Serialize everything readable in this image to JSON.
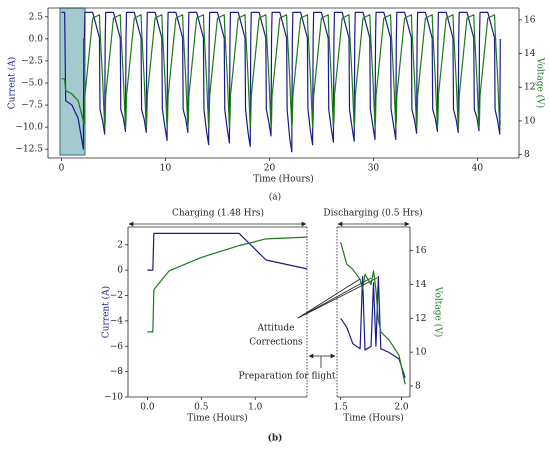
{
  "chart_data": [
    {
      "type": "line",
      "xlabel": "Time (Hours)",
      "ylabel": "Current (A)",
      "y2label": "Voltage (V)",
      "caption": "(a)",
      "xlim": [
        -1.3,
        44
      ],
      "xticks": [
        0,
        10,
        20,
        30,
        40
      ],
      "ylim": [
        -13.5,
        3.5
      ],
      "yticks": [
        2.5,
        {
          "value": 0,
          "label": "0.0"
        },
        {
          "value": -2.5,
          "label": "−2.5"
        },
        {
          "value": -5,
          "label": "−5.0"
        },
        {
          "value": -7.5,
          "label": "−7.5"
        },
        {
          "value": -10,
          "label": "−10.0"
        },
        {
          "value": -12.5,
          "label": "−12.5"
        }
      ],
      "y2lim": [
        7.8,
        16.7
      ],
      "y2ticks": [
        8,
        10,
        12,
        14,
        16
      ],
      "x": [
        0,
        0.3,
        0.4,
        1,
        1.6,
        2.1,
        2.15,
        2.2,
        2.25,
        3,
        3.65,
        3.7,
        3.95,
        4.15,
        4.2,
        4.25,
        5,
        5.65,
        5.7,
        5.95,
        6.15,
        6.2,
        6.25,
        7,
        7.65,
        7.7,
        7.95,
        8.15,
        8.2,
        8.25,
        9,
        9.65,
        9.7,
        9.95,
        10.15,
        10.2,
        10.25,
        11,
        11.65,
        11.7,
        11.95,
        12.15,
        12.2,
        12.25,
        13,
        13.65,
        13.7,
        13.95,
        14.15,
        14.2,
        14.25,
        15,
        15.65,
        15.7,
        15.95,
        16.15,
        16.2,
        16.25,
        17,
        17.65,
        17.7,
        17.95,
        18.15,
        18.2,
        18.25,
        19,
        19.65,
        19.7,
        19.95,
        20.15,
        20.2,
        20.25,
        21,
        21.65,
        21.7,
        21.95,
        22.15,
        22.2,
        22.25,
        23,
        23.65,
        23.7,
        23.95,
        24.15,
        24.2,
        24.25,
        25,
        25.65,
        25.7,
        25.95,
        26.15,
        26.2,
        26.25,
        27,
        27.65,
        27.7,
        27.95,
        28.15,
        28.2,
        28.25,
        29,
        29.65,
        29.7,
        29.95,
        30.15,
        30.2,
        30.25,
        31,
        31.65,
        31.7,
        31.95,
        32.15,
        32.2,
        32.25,
        33,
        33.65,
        33.7,
        33.95,
        34.15,
        34.2,
        34.25,
        35,
        35.65,
        35.7,
        35.95,
        36.15,
        36.2,
        36.25,
        37,
        37.65,
        37.7,
        37.95,
        38.15,
        38.2,
        38.25,
        39,
        39.65,
        39.7,
        39.95,
        40.15,
        40.2,
        40.25,
        41,
        41.65,
        41.7,
        41.95,
        42.15,
        42.2
      ],
      "series": [
        {
          "color": "#1a1a8c",
          "axis": "y",
          "values": [
            3,
            3,
            -7,
            -7.5,
            -9,
            -12.5,
            0,
            0,
            3,
            3,
            0.1,
            -8,
            -9.3,
            -10.8,
            0,
            3,
            3,
            0.1,
            -8,
            -9,
            -10.5,
            0,
            3,
            3,
            0.1,
            -8,
            -9.1,
            -10.6,
            0,
            3,
            3,
            0.1,
            -8,
            -10,
            -11.5,
            0,
            3,
            3,
            0.1,
            -8,
            -9.1,
            -10.6,
            0,
            3,
            3,
            0.1,
            -8,
            -10.5,
            -12,
            0,
            3,
            3,
            0.1,
            -8,
            -10.3,
            -11.8,
            0,
            3,
            3,
            0.1,
            -8,
            -10.7,
            -12.2,
            0,
            3,
            3,
            0.1,
            -8,
            -9.5,
            -11,
            0,
            3,
            3,
            0.1,
            -8,
            -11.3,
            -12.8,
            0,
            3,
            3,
            0.1,
            -8,
            -10.5,
            -12,
            0,
            3,
            3,
            0.1,
            -8,
            -10.2,
            -11.7,
            0,
            3,
            3,
            0.1,
            -8,
            -10.1,
            -11.6,
            0,
            3,
            3,
            0.1,
            -8,
            -9.9,
            -11.4,
            0,
            3,
            3,
            0.1,
            -8,
            -9.9,
            -11.4,
            0,
            3,
            3,
            0.1,
            -8,
            -9.2,
            -10.7,
            0,
            3,
            3,
            0.1,
            -8,
            -9,
            -10.5,
            0,
            3,
            3,
            0.1,
            -8,
            -9.1,
            -10.6,
            0,
            3,
            3,
            0.1,
            -8,
            -8.9,
            -10.4,
            0,
            3,
            3,
            0.1,
            -8,
            -9.3,
            -10.8,
            0
          ]
        },
        {
          "color": "#1b7a1b",
          "axis": "y2",
          "values": [
            12.5,
            12.5,
            11.8,
            11.6,
            11.2,
            10,
            9.8,
            10,
            11.5,
            16.1,
            16.3,
            15.4,
            12.5,
            9.6,
            10,
            11.5,
            16.1,
            16.3,
            15.4,
            12.5,
            9.6,
            10,
            11.5,
            16.1,
            16.3,
            15.4,
            12.5,
            9.6,
            10,
            11.5,
            16.1,
            16.3,
            15.4,
            12.5,
            9.6,
            10,
            11.5,
            16.1,
            16.3,
            15.4,
            12.5,
            9.6,
            10,
            11.5,
            16.1,
            16.3,
            15.4,
            12.5,
            9.6,
            10,
            11.5,
            16.1,
            16.3,
            15.4,
            12.5,
            9.6,
            10,
            11.5,
            16.1,
            16.3,
            15.4,
            12.5,
            9.6,
            10,
            11.5,
            16.1,
            16.3,
            15.4,
            12.5,
            9.6,
            10,
            11.5,
            16.1,
            16.3,
            15.4,
            12.5,
            9.6,
            10,
            11.5,
            16.1,
            16.3,
            15.4,
            12.5,
            9.6,
            10,
            11.5,
            16.1,
            16.3,
            15.4,
            12.5,
            9.6,
            10,
            11.5,
            16.1,
            16.3,
            15.4,
            12.5,
            9.6,
            10,
            11.5,
            16.1,
            16.3,
            15.4,
            12.5,
            9.6,
            10,
            11.5,
            16.1,
            16.3,
            15.4,
            12.5,
            9.6,
            10,
            11.5,
            16.1,
            16.3,
            15.4,
            12.5,
            9.6,
            10,
            11.5,
            16.1,
            16.3,
            15.4,
            12.5,
            9.6,
            10,
            11.5,
            16.1,
            16.3,
            15.4,
            12.5,
            9.6,
            10,
            11.5,
            16.1,
            16.3,
            15.4,
            12.5,
            9.6,
            10,
            11.5,
            16.1,
            16.3,
            15.4,
            12.5,
            9.6,
            10
          ]
        }
      ]
    },
    {
      "type": "line",
      "xlabel": "Time (Hours)",
      "ylabel": "Current (A)",
      "caption": "(b)",
      "header": "Charging (1.48 Hrs)",
      "notes": [
        "Attitude",
        "Corrections",
        "Preparation for flight"
      ],
      "xlim": [
        -0.18,
        1.48
      ],
      "xticks": [
        {
          "value": 0,
          "label": "0.0"
        },
        0.5,
        {
          "value": 1,
          "label": "1.0"
        }
      ],
      "ylim": [
        -10,
        3.4
      ],
      "yticks": [
        2,
        0,
        {
          "value": -2,
          "label": "−2"
        },
        {
          "value": -4,
          "label": "−4"
        },
        {
          "value": -6,
          "label": "−6"
        },
        {
          "value": -8,
          "label": "−8"
        },
        {
          "value": -10,
          "label": "−10"
        }
      ],
      "y2lim": [
        7.35,
        17.4
      ],
      "x": [
        0,
        0.05,
        0.06,
        0.2,
        0.5,
        0.85,
        1.1,
        1.48
      ],
      "series": [
        {
          "color": "#1a1a8c",
          "axis": "y",
          "values": [
            0,
            0,
            2.9,
            2.9,
            2.9,
            2.9,
            0.8,
            0.1
          ]
        },
        {
          "color": "#1b7a1b",
          "axis": "y2",
          "values": [
            11.2,
            11.2,
            13.7,
            14.8,
            15.6,
            16.3,
            16.7,
            16.8
          ]
        }
      ]
    },
    {
      "type": "line",
      "xlabel": "Time (Hours)",
      "y2label": "Voltage (V)",
      "header": "Discharging (0.5 Hrs)",
      "xlim": [
        1.47,
        2.07
      ],
      "xticks": [
        1.5,
        {
          "value": 2,
          "label": "2.0"
        }
      ],
      "ylim": [
        -10,
        3.4
      ],
      "y2lim": [
        7.35,
        17.4
      ],
      "y2ticks": [
        8,
        10,
        12,
        14,
        16
      ],
      "x": [
        1.5,
        1.55,
        1.6,
        1.66,
        1.68,
        1.7,
        1.75,
        1.77,
        1.79,
        1.81,
        1.83,
        1.9,
        1.98,
        2.03
      ],
      "series": [
        {
          "color": "#1a1a8c",
          "axis": "y",
          "values": [
            -3.8,
            -4.5,
            -5.8,
            -6.2,
            -0.5,
            -6.3,
            -6,
            -1,
            -6,
            -0.5,
            -6.2,
            -6.5,
            -7,
            -8.5
          ]
        },
        {
          "color": "#1b7a1b",
          "axis": "y2",
          "values": [
            16.5,
            15.2,
            14.9,
            14.3,
            13.7,
            14.6,
            14,
            14.8,
            13.7,
            11.9,
            11.2,
            10.7,
            9.8,
            8.1
          ]
        }
      ]
    }
  ]
}
